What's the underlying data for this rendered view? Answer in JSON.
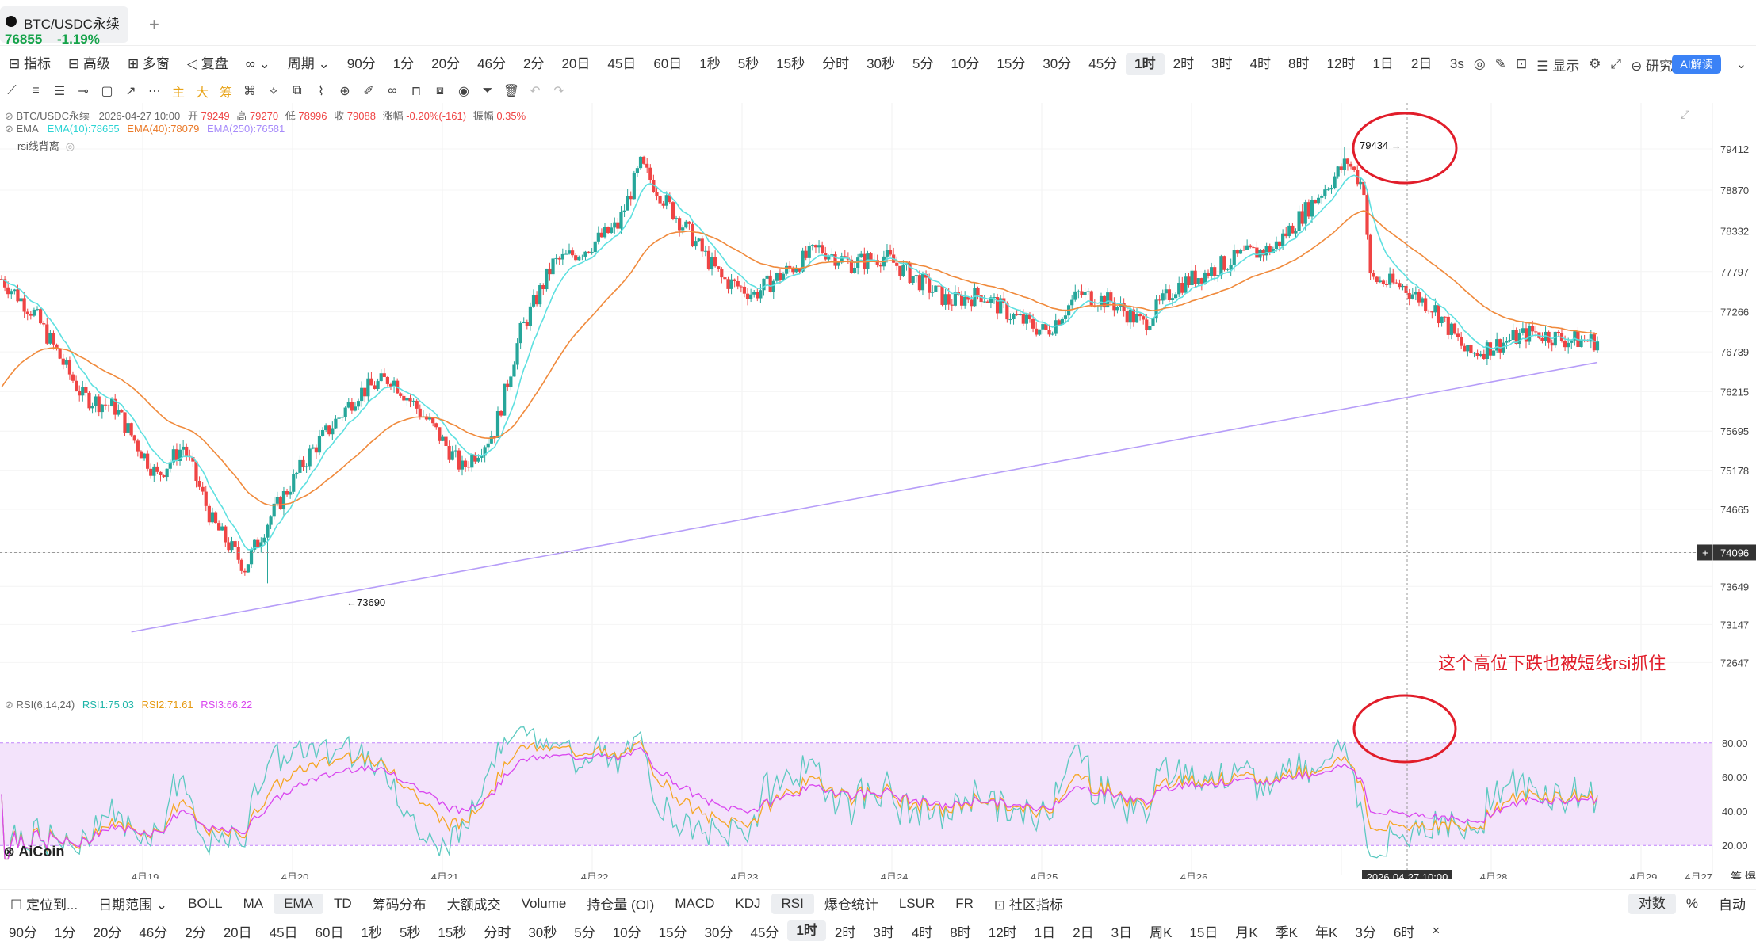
{
  "tab": {
    "name": "BTC/USDC永续",
    "price": "76855",
    "change": "-1.19%",
    "add": "+"
  },
  "toolbar": {
    "items": [
      {
        "label": "⊟ 指标"
      },
      {
        "label": "⊟ 高级"
      },
      {
        "label": "⊞ 多窗"
      },
      {
        "label": "◁ 复盘"
      },
      {
        "label": "∞ ⌄"
      },
      {
        "label": "周期 ⌄"
      },
      {
        "label": "90分"
      },
      {
        "label": "1分"
      },
      {
        "label": "20分"
      },
      {
        "label": "46分"
      },
      {
        "label": "2分"
      },
      {
        "label": "20日"
      },
      {
        "label": "45日"
      },
      {
        "label": "60日"
      },
      {
        "label": "1秒"
      },
      {
        "label": "5秒"
      },
      {
        "label": "15秒"
      },
      {
        "label": "分时"
      },
      {
        "label": "30秒"
      },
      {
        "label": "5分"
      },
      {
        "label": "10分"
      },
      {
        "label": "15分"
      },
      {
        "label": "30分"
      },
      {
        "label": "45分"
      },
      {
        "label": "1时",
        "selected": true
      },
      {
        "label": "2时"
      },
      {
        "label": "3时"
      },
      {
        "label": "4时"
      },
      {
        "label": "8时"
      },
      {
        "label": "12时"
      },
      {
        "label": "1日"
      },
      {
        "label": "2日"
      }
    ],
    "right": [
      {
        "label": "3s"
      },
      {
        "label": "◎"
      },
      {
        "label": "✎"
      },
      {
        "label": "⊡"
      },
      {
        "label": "☰ 显示"
      },
      {
        "label": "⚙"
      },
      {
        "label": "⤢"
      },
      {
        "label": "⊖ 研究 ⌄"
      }
    ],
    "ai_label": "AI解读",
    "more": "⌄"
  },
  "drawbar": {
    "icons": [
      {
        "name": "line-tool-icon",
        "glyph": "⟋"
      },
      {
        "name": "hlines-icon",
        "glyph": "≡"
      },
      {
        "name": "parallel-icon",
        "glyph": "☰"
      },
      {
        "name": "hline-icon",
        "glyph": "⊸"
      },
      {
        "name": "rect-icon",
        "glyph": "▢"
      },
      {
        "name": "arrow-icon",
        "glyph": "↗"
      },
      {
        "name": "more-icon",
        "glyph": "⋯"
      },
      {
        "name": "main-icon",
        "glyph": "主"
      },
      {
        "name": "big-icon",
        "glyph": "大"
      },
      {
        "name": "chip-icon",
        "glyph": "筹"
      },
      {
        "name": "brush-icon",
        "glyph": "⌘"
      },
      {
        "name": "measure-icon",
        "glyph": "⟡"
      },
      {
        "name": "copy-icon",
        "glyph": "⧉"
      },
      {
        "name": "ruler-icon",
        "glyph": "⌇"
      },
      {
        "name": "zoom-icon",
        "glyph": "⊕"
      },
      {
        "name": "pen-icon",
        "glyph": "✐"
      },
      {
        "name": "link-icon",
        "glyph": "∞"
      },
      {
        "name": "lock-icon",
        "glyph": "⊓"
      },
      {
        "name": "layers-icon",
        "glyph": "⧈"
      },
      {
        "name": "eye-icon",
        "glyph": "◉"
      },
      {
        "name": "filter-icon",
        "glyph": "⏷"
      },
      {
        "name": "trash-icon",
        "glyph": "🗑"
      },
      {
        "name": "undo-icon",
        "glyph": "↶"
      },
      {
        "name": "redo-icon",
        "glyph": "↷"
      }
    ]
  },
  "legend": {
    "symbol": "BTC/USDC永续",
    "time": "2026-04-27 10:00",
    "open_label": "开",
    "open": "79249",
    "high_label": "高",
    "high": "79270",
    "low_label": "低",
    "low": "78996",
    "close_label": "收",
    "close": "79088",
    "chg_label": "涨幅",
    "chg": "-0.20%(-161)",
    "amp_label": "振幅",
    "amp": "0.35%",
    "ema_label": "EMA",
    "ema10": "EMA(10):78655",
    "ema40": "EMA(40):78079",
    "ema250": "EMA(250):76581",
    "rsi_div": "rsi线背离",
    "rsi_label": "RSI(6,14,24)",
    "rsi1": "RSI1:75.03",
    "rsi2": "RSI2:71.61",
    "rsi3": "RSI3:66.22"
  },
  "axis": {
    "prices": [
      "79412",
      "78870",
      "78332",
      "77797",
      "77266",
      "76739",
      "76215",
      "75695",
      "75178",
      "74665",
      "74096",
      "73649",
      "73147",
      "72647"
    ],
    "rsi": [
      "80.00",
      "60.00",
      "40.00",
      "20.00"
    ],
    "dates": [
      "4月19",
      "4月20",
      "4月21",
      "4月22",
      "4月23",
      "4月24",
      "4月25",
      "4月26",
      "4月27",
      "4月28",
      "4月29"
    ],
    "crosshair_time": "2026-04-27 10:00",
    "crosshair_price": "74096",
    "right_label": "筹 爆"
  },
  "annotations": {
    "high_mark": "79434 →",
    "low_mark": "←73690",
    "note": "这个高位下跌也被短线rsi抓住"
  },
  "watermark": "AiCoin",
  "colors": {
    "up": "#26a69a",
    "down": "#ef4444",
    "ema10": "#5ee0e0",
    "ema40": "#f08a3c",
    "ema250": "#b69df8",
    "rsi1": "#5cc9c0",
    "rsi2": "#f5a623",
    "rsi3": "#d946ef",
    "rsi_band": "#f3e3fb",
    "annotation": "#e11d2a"
  },
  "bottombar": {
    "items": [
      {
        "label": "☐ 定位到..."
      },
      {
        "label": "日期范围 ⌄"
      },
      {
        "label": "BOLL"
      },
      {
        "label": "MA"
      },
      {
        "label": "EMA",
        "selected": true
      },
      {
        "label": "TD"
      },
      {
        "label": "筹码分布"
      },
      {
        "label": "大额成交"
      },
      {
        "label": "Volume"
      },
      {
        "label": "持仓量 (OI)"
      },
      {
        "label": "MACD"
      },
      {
        "label": "KDJ"
      },
      {
        "label": "RSI",
        "selected": true
      },
      {
        "label": "爆仓统计"
      },
      {
        "label": "LSUR"
      },
      {
        "label": "FR"
      },
      {
        "label": "⊡ 社区指标"
      }
    ],
    "right": [
      {
        "label": "对数"
      },
      {
        "label": "%"
      },
      {
        "label": "自动"
      }
    ]
  },
  "periodbar": {
    "items": [
      {
        "label": "90分"
      },
      {
        "label": "1分"
      },
      {
        "label": "20分"
      },
      {
        "label": "46分"
      },
      {
        "label": "2分"
      },
      {
        "label": "20日"
      },
      {
        "label": "45日"
      },
      {
        "label": "60日"
      },
      {
        "label": "1秒"
      },
      {
        "label": "5秒"
      },
      {
        "label": "15秒"
      },
      {
        "label": "分时"
      },
      {
        "label": "30秒"
      },
      {
        "label": "5分"
      },
      {
        "label": "10分"
      },
      {
        "label": "15分"
      },
      {
        "label": "30分"
      },
      {
        "label": "45分"
      },
      {
        "label": "1时",
        "selected": true
      },
      {
        "label": "2时"
      },
      {
        "label": "3时"
      },
      {
        "label": "4时"
      },
      {
        "label": "8时"
      },
      {
        "label": "12时"
      },
      {
        "label": "1日"
      },
      {
        "label": "2日"
      },
      {
        "label": "3日"
      },
      {
        "label": "周K"
      },
      {
        "label": "15日"
      },
      {
        "label": "月K"
      },
      {
        "label": "季K"
      },
      {
        "label": "年K"
      },
      {
        "label": "3分"
      },
      {
        "label": "6时"
      },
      {
        "label": "×"
      }
    ]
  }
}
